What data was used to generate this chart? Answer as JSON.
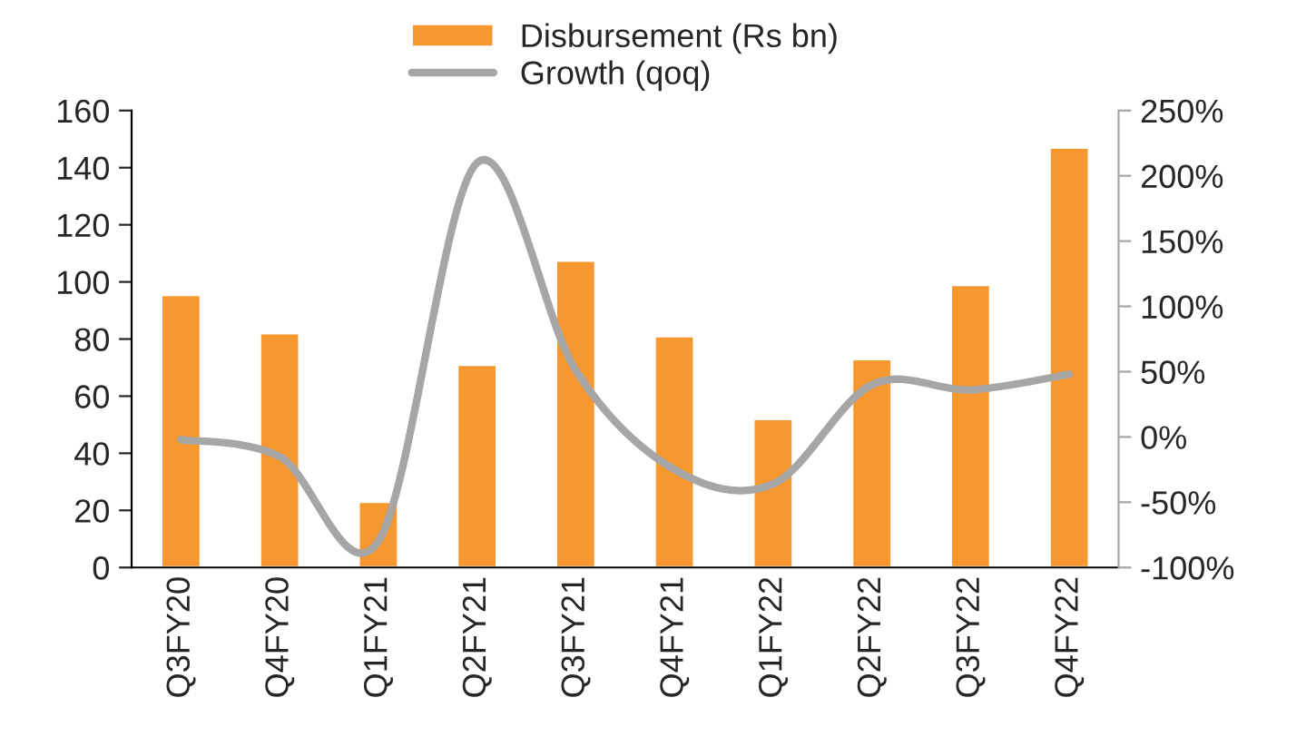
{
  "chart_data": {
    "type": "bar",
    "categories": [
      "Q3FY20",
      "Q4FY20",
      "Q1FY21",
      "Q2FY21",
      "Q3FY21",
      "Q4FY21",
      "Q1FY22",
      "Q2FY22",
      "Q3FY22",
      "Q4FY22"
    ],
    "series": [
      {
        "name": "Disbursement (Rs bn)",
        "color": "#f7972f",
        "values": [
          95.5,
          82,
          23,
          71,
          107.5,
          81,
          52,
          73,
          99,
          147
        ]
      },
      {
        "name": "Growth (qoq)",
        "type": "line",
        "axis": "y2",
        "color": "#a6a6a6",
        "values": [
          -2,
          -15,
          -80,
          210,
          51,
          -25,
          -36,
          40,
          36,
          48
        ]
      }
    ],
    "ylim": [
      0,
      160
    ],
    "yticks": [
      0,
      20,
      40,
      60,
      80,
      100,
      120,
      140,
      160
    ],
    "y2lim": [
      -100,
      250
    ],
    "y2ticks": [
      {
        "value": -100,
        "label": "-100%"
      },
      {
        "value": -50,
        "label": "-50%"
      },
      {
        "value": 0,
        "label": "0%"
      },
      {
        "value": 50,
        "label": "50%"
      },
      {
        "value": 100,
        "label": "100%"
      },
      {
        "value": 150,
        "label": "150%"
      },
      {
        "value": 200,
        "label": "200%"
      },
      {
        "value": 250,
        "label": "250%"
      }
    ],
    "legend": "top",
    "grid": false
  }
}
